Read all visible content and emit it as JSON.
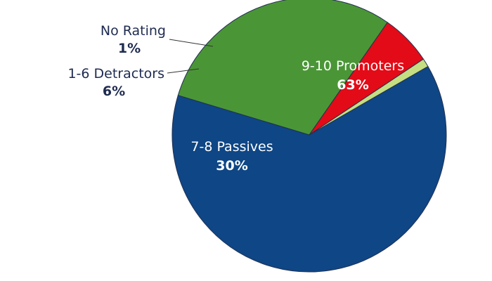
{
  "chart_data": {
    "type": "pie",
    "start_angle_deg": -30,
    "direction": "clockwise",
    "slices": [
      {
        "label": "9-10 Promoters",
        "value": 63,
        "display": "63%",
        "color": "#0e4686",
        "text_color": "#ffffff",
        "label_position": "inside"
      },
      {
        "label": "7-8 Passives",
        "value": 30,
        "display": "30%",
        "color": "#4a9636",
        "text_color": "#ffffff",
        "label_position": "inside"
      },
      {
        "label": "1-6 Detractors",
        "value": 6,
        "display": "6%",
        "color": "#e30b17",
        "text_color": "#1e2b50",
        "label_position": "outside-left"
      },
      {
        "label": "No Rating",
        "value": 1,
        "display": "1%",
        "color": "#c5de82",
        "text_color": "#1e2b50",
        "label_position": "outside-left"
      }
    ],
    "slice_border_color": "#223150"
  }
}
